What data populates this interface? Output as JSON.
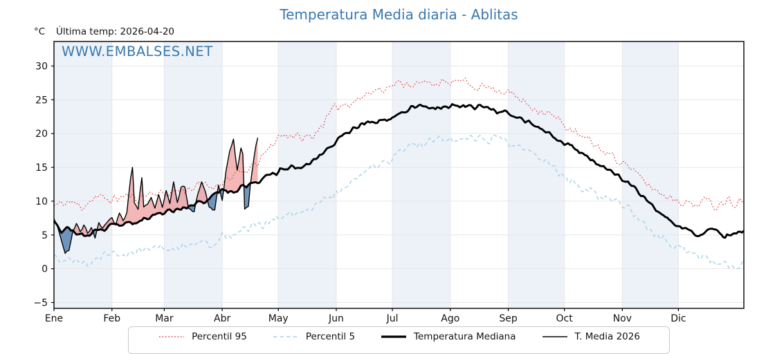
{
  "title": "Temperatura Media diaria - Ablitas",
  "header": {
    "unit_label": "°C",
    "last_temp_label": "Última temp: 2026-04-20"
  },
  "watermark": "WWW.EMBALSES.NET",
  "colors": {
    "title_blue": "#3878ae",
    "percentil95_red": "#e64848",
    "percentil5_blue": "#a7d1e6",
    "median_black": "#000000",
    "t2026_black": "#000000",
    "fill_above": "rgba(230,95,95,0.45)",
    "fill_below": "rgba(62,112,166,0.72)",
    "month_band": "#edf2f9",
    "gridline": "#e6e6ea",
    "frame": "#000000"
  },
  "chart_data": {
    "type": "line",
    "title": "Temperatura Media diaria - Ablitas",
    "xlabel": "",
    "ylabel": "°C",
    "x_tick_labels": [
      "Ene",
      "Feb",
      "Mar",
      "Abr",
      "May",
      "Jun",
      "Jul",
      "Ago",
      "Sep",
      "Oct",
      "Nov",
      "Dic"
    ],
    "month_start_days": [
      0,
      31,
      59,
      90,
      120,
      151,
      181,
      212,
      243,
      273,
      304,
      334
    ],
    "shaded_months": [
      0,
      2,
      4,
      6,
      8,
      10
    ],
    "y_ticks": [
      -5,
      0,
      5,
      10,
      15,
      20,
      25,
      30
    ],
    "ylim": [
      -5.8,
      33.6
    ],
    "xlim_days": [
      0,
      369
    ],
    "grid": true,
    "legend_position": "bottom",
    "last_data_day_2026": 109,
    "noise_seed": 11,
    "series": [
      {
        "name": "Percentil 95",
        "style": "dotted",
        "color": "#e64848",
        "noise_amp": 0.85,
        "control_points": [
          [
            0,
            9.3
          ],
          [
            8,
            9.9
          ],
          [
            15,
            9.2
          ],
          [
            22,
            10.6
          ],
          [
            31,
            10.2
          ],
          [
            38,
            10.8
          ],
          [
            45,
            10.4
          ],
          [
            52,
            11.3
          ],
          [
            59,
            11.0
          ],
          [
            66,
            11.6
          ],
          [
            73,
            11.9
          ],
          [
            80,
            12.4
          ],
          [
            86,
            12.1
          ],
          [
            90,
            13.0
          ],
          [
            96,
            13.7
          ],
          [
            102,
            14.3
          ],
          [
            108,
            15.5
          ],
          [
            114,
            17.3
          ],
          [
            120,
            19.6
          ],
          [
            126,
            19.9
          ],
          [
            132,
            19.3
          ],
          [
            138,
            19.5
          ],
          [
            144,
            21.6
          ],
          [
            151,
            24.0
          ],
          [
            158,
            24.6
          ],
          [
            165,
            25.4
          ],
          [
            172,
            26.5
          ],
          [
            181,
            27.1
          ],
          [
            188,
            27.6
          ],
          [
            195,
            27.2
          ],
          [
            202,
            27.7
          ],
          [
            209,
            27.3
          ],
          [
            216,
            27.8
          ],
          [
            223,
            27.2
          ],
          [
            230,
            27.0
          ],
          [
            237,
            26.6
          ],
          [
            243,
            26.1
          ],
          [
            250,
            24.9
          ],
          [
            257,
            23.8
          ],
          [
            264,
            23.1
          ],
          [
            273,
            21.3
          ],
          [
            280,
            19.8
          ],
          [
            287,
            18.8
          ],
          [
            294,
            17.4
          ],
          [
            300,
            16.4
          ],
          [
            306,
            15.6
          ],
          [
            312,
            13.8
          ],
          [
            318,
            12.4
          ],
          [
            324,
            11.2
          ],
          [
            330,
            10.6
          ],
          [
            336,
            10.0
          ],
          [
            342,
            9.4
          ],
          [
            348,
            10.2
          ],
          [
            354,
            9.3
          ],
          [
            360,
            10.4
          ],
          [
            364,
            9.6
          ],
          [
            369,
            10.6
          ]
        ]
      },
      {
        "name": "Percentil 5",
        "style": "dashed",
        "color": "#a7d1e6",
        "noise_amp": 0.8,
        "control_points": [
          [
            0,
            1.9
          ],
          [
            6,
            0.9
          ],
          [
            12,
            1.6
          ],
          [
            18,
            0.7
          ],
          [
            24,
            1.8
          ],
          [
            31,
            2.3
          ],
          [
            38,
            1.9
          ],
          [
            45,
            2.6
          ],
          [
            52,
            3.1
          ],
          [
            59,
            3.4
          ],
          [
            66,
            3.0
          ],
          [
            73,
            3.4
          ],
          [
            80,
            3.9
          ],
          [
            86,
            3.6
          ],
          [
            90,
            4.6
          ],
          [
            96,
            5.2
          ],
          [
            102,
            5.7
          ],
          [
            108,
            6.3
          ],
          [
            114,
            6.8
          ],
          [
            120,
            7.2
          ],
          [
            126,
            7.9
          ],
          [
            132,
            8.3
          ],
          [
            138,
            9.1
          ],
          [
            144,
            10.0
          ],
          [
            151,
            11.3
          ],
          [
            158,
            12.5
          ],
          [
            165,
            13.8
          ],
          [
            172,
            15.1
          ],
          [
            181,
            16.3
          ],
          [
            188,
            17.7
          ],
          [
            195,
            18.4
          ],
          [
            202,
            18.8
          ],
          [
            209,
            19.3
          ],
          [
            216,
            19.0
          ],
          [
            223,
            19.5
          ],
          [
            230,
            19.1
          ],
          [
            237,
            19.4
          ],
          [
            243,
            18.5
          ],
          [
            250,
            17.6
          ],
          [
            257,
            16.7
          ],
          [
            264,
            15.4
          ],
          [
            273,
            13.7
          ],
          [
            280,
            12.4
          ],
          [
            287,
            11.3
          ],
          [
            294,
            10.3
          ],
          [
            300,
            9.7
          ],
          [
            306,
            9.1
          ],
          [
            312,
            7.6
          ],
          [
            318,
            6.2
          ],
          [
            324,
            4.6
          ],
          [
            330,
            3.7
          ],
          [
            336,
            3.0
          ],
          [
            342,
            2.3
          ],
          [
            348,
            1.9
          ],
          [
            354,
            1.1
          ],
          [
            360,
            0.6
          ],
          [
            364,
            0.2
          ],
          [
            369,
            1.4
          ]
        ]
      },
      {
        "name": "Temperatura Mediana",
        "style": "solid-thick",
        "color": "#000000",
        "noise_amp": 0.45,
        "control_points": [
          [
            0,
            7.0
          ],
          [
            4,
            5.6
          ],
          [
            8,
            6.2
          ],
          [
            12,
            5.1
          ],
          [
            17,
            5.0
          ],
          [
            22,
            5.6
          ],
          [
            27,
            5.9
          ],
          [
            31,
            6.3
          ],
          [
            38,
            6.7
          ],
          [
            45,
            7.1
          ],
          [
            52,
            7.7
          ],
          [
            59,
            8.3
          ],
          [
            66,
            8.6
          ],
          [
            73,
            9.4
          ],
          [
            80,
            9.9
          ],
          [
            85,
            10.7
          ],
          [
            90,
            11.9
          ],
          [
            95,
            11.4
          ],
          [
            100,
            11.9
          ],
          [
            105,
            12.4
          ],
          [
            110,
            13.0
          ],
          [
            115,
            13.7
          ],
          [
            120,
            14.3
          ],
          [
            126,
            15.3
          ],
          [
            132,
            14.8
          ],
          [
            138,
            15.9
          ],
          [
            144,
            17.0
          ],
          [
            151,
            18.9
          ],
          [
            158,
            20.2
          ],
          [
            165,
            21.4
          ],
          [
            172,
            21.9
          ],
          [
            178,
            22.1
          ],
          [
            185,
            23.0
          ],
          [
            192,
            23.9
          ],
          [
            199,
            24.2
          ],
          [
            206,
            23.8
          ],
          [
            213,
            24.1
          ],
          [
            220,
            23.9
          ],
          [
            227,
            24.0
          ],
          [
            234,
            23.5
          ],
          [
            240,
            23.2
          ],
          [
            247,
            22.4
          ],
          [
            254,
            21.7
          ],
          [
            261,
            20.6
          ],
          [
            268,
            19.6
          ],
          [
            275,
            18.4
          ],
          [
            282,
            17.2
          ],
          [
            289,
            16.0
          ],
          [
            296,
            14.8
          ],
          [
            303,
            13.5
          ],
          [
            310,
            12.2
          ],
          [
            317,
            10.4
          ],
          [
            324,
            8.4
          ],
          [
            331,
            6.8
          ],
          [
            338,
            5.8
          ],
          [
            345,
            5.0
          ],
          [
            352,
            5.8
          ],
          [
            359,
            4.6
          ],
          [
            364,
            5.2
          ],
          [
            369,
            5.7
          ]
        ]
      },
      {
        "name": "T. Media 2026",
        "style": "solid-thin",
        "color": "#000000",
        "noise_amp": 0.3,
        "end_day": 109,
        "control_points": [
          [
            0,
            7.4
          ],
          [
            2,
            6.0
          ],
          [
            4,
            4.0
          ],
          [
            6,
            2.3
          ],
          [
            8,
            2.6
          ],
          [
            10,
            5.2
          ],
          [
            12,
            6.9
          ],
          [
            14,
            5.4
          ],
          [
            16,
            6.6
          ],
          [
            18,
            5.2
          ],
          [
            20,
            6.3
          ],
          [
            22,
            4.6
          ],
          [
            24,
            6.9
          ],
          [
            26,
            5.8
          ],
          [
            28,
            6.6
          ],
          [
            31,
            7.7
          ],
          [
            33,
            6.4
          ],
          [
            35,
            8.1
          ],
          [
            37,
            7.0
          ],
          [
            39,
            8.3
          ],
          [
            41,
            13.2
          ],
          [
            42,
            15.0
          ],
          [
            43,
            9.8
          ],
          [
            45,
            8.6
          ],
          [
            46,
            11.2
          ],
          [
            47,
            13.4
          ],
          [
            48,
            9.0
          ],
          [
            50,
            9.4
          ],
          [
            52,
            10.6
          ],
          [
            54,
            9.0
          ],
          [
            56,
            10.8
          ],
          [
            58,
            9.2
          ],
          [
            60,
            11.4
          ],
          [
            62,
            9.4
          ],
          [
            64,
            12.7
          ],
          [
            66,
            10.0
          ],
          [
            68,
            12.1
          ],
          [
            70,
            12.0
          ],
          [
            72,
            8.8
          ],
          [
            75,
            8.6
          ],
          [
            77,
            11.0
          ],
          [
            79,
            12.9
          ],
          [
            81,
            11.2
          ],
          [
            83,
            9.2
          ],
          [
            86,
            8.7
          ],
          [
            88,
            12.3
          ],
          [
            90,
            10.2
          ],
          [
            92,
            14.2
          ],
          [
            94,
            17.7
          ],
          [
            96,
            19.3
          ],
          [
            97,
            16.8
          ],
          [
            98,
            14.6
          ],
          [
            99,
            16.1
          ],
          [
            100,
            17.9
          ],
          [
            101,
            17.0
          ],
          [
            102,
            8.7
          ],
          [
            104,
            9.0
          ],
          [
            105,
            12.1
          ],
          [
            106,
            14.3
          ],
          [
            107,
            16.4
          ],
          [
            108,
            18.3
          ],
          [
            109,
            19.6
          ]
        ]
      }
    ],
    "fills": {
      "between": [
        "T. Media 2026",
        "Temperatura Mediana"
      ],
      "above_color": "rgba(230,95,95,0.45)",
      "below_color": "rgba(62,112,166,0.72)"
    }
  }
}
